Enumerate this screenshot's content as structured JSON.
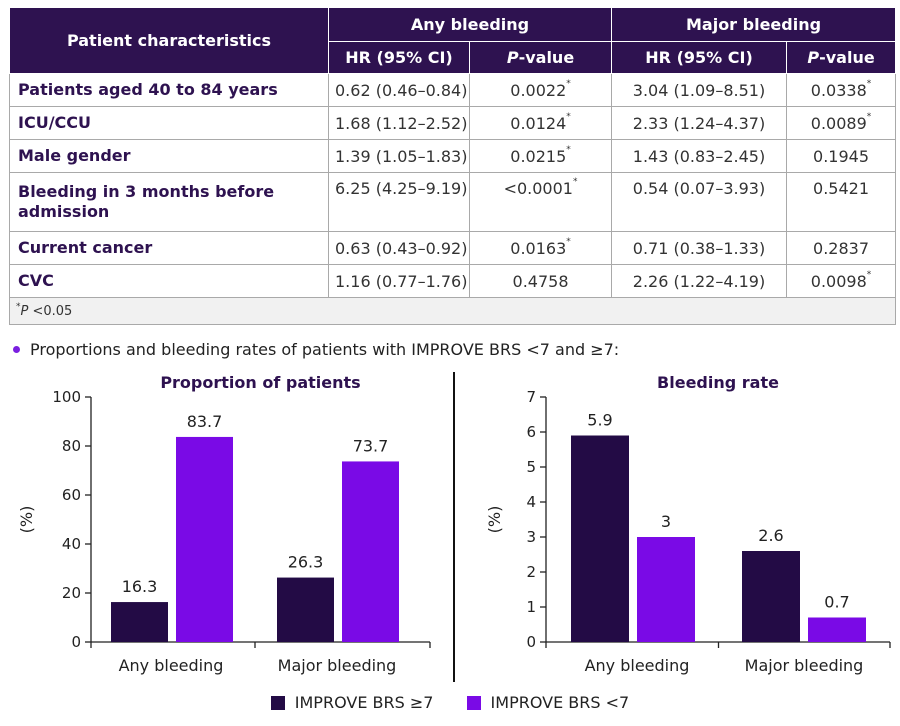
{
  "table": {
    "header": {
      "patient_characteristics": "Patient characteristics",
      "any_bleeding": "Any bleeding",
      "major_bleeding": "Major bleeding",
      "hr_ci": "HR (95% CI)",
      "p_italic": "P",
      "p_suffix": "-value"
    },
    "rows": [
      {
        "label": "Patients aged 40 to 84 years",
        "any_hr": "0.62 (0.46–0.84)",
        "any_p": "0.0022",
        "any_sig": "*",
        "major_hr": "3.04 (1.09–8.51)",
        "major_p": "0.0338",
        "major_sig": "*"
      },
      {
        "label": "ICU/CCU",
        "any_hr": "1.68 (1.12–2.52)",
        "any_p": "0.0124",
        "any_sig": "*",
        "major_hr": "2.33 (1.24–4.37)",
        "major_p": "0.0089",
        "major_sig": "*"
      },
      {
        "label": "Male gender",
        "any_hr": "1.39 (1.05–1.83)",
        "any_p": "0.0215",
        "any_sig": "*",
        "major_hr": "1.43 (0.83–2.45)",
        "major_p": "0.1945",
        "major_sig": ""
      },
      {
        "label": "Bleeding in 3 months before admission",
        "any_hr": "6.25 (4.25–9.19)",
        "any_p": "<0.0001",
        "any_sig": "*",
        "major_hr": "0.54 (0.07–3.93)",
        "major_p": "0.5421",
        "major_sig": ""
      },
      {
        "label": "Current cancer",
        "any_hr": "0.63 (0.43–0.92)",
        "any_p": "0.0163",
        "any_sig": "*",
        "major_hr": "0.71 (0.38–1.33)",
        "major_p": "0.2837",
        "major_sig": ""
      },
      {
        "label": "CVC",
        "any_hr": "1.16 (0.77–1.76)",
        "any_p": "0.4758",
        "any_sig": "",
        "major_hr": "2.26 (1.22–4.19)",
        "major_p": "0.0098",
        "major_sig": "*"
      }
    ],
    "footnote": {
      "star": "*",
      "p": "P",
      "rest": " <0.05"
    }
  },
  "bullet_text": "Proportions and bleeding rates of patients with IMPROVE BRS <7 and ≥7:",
  "chart_data": [
    {
      "type": "bar",
      "title": "Proportion of patients",
      "ylabel": "(%)",
      "ylim": [
        0,
        100
      ],
      "yticks": [
        0,
        20,
        40,
        60,
        80,
        100
      ],
      "categories": [
        "Any bleeding",
        "Major bleeding"
      ],
      "series": [
        {
          "name": "IMPROVE BRS ≥7",
          "values": [
            16.3,
            26.3
          ],
          "color": "#230b45"
        },
        {
          "name": "IMPROVE BRS <7",
          "values": [
            83.7,
            73.7
          ],
          "color": "#7a0ae6"
        }
      ],
      "grid": false
    },
    {
      "type": "bar",
      "title": "Bleeding rate",
      "ylabel": "(%)",
      "ylim": [
        0,
        7
      ],
      "yticks": [
        0,
        1,
        2,
        3,
        4,
        5,
        6,
        7
      ],
      "categories": [
        "Any bleeding",
        "Major bleeding"
      ],
      "series": [
        {
          "name": "IMPROVE BRS ≥7",
          "values": [
            5.9,
            2.6
          ],
          "color": "#230b45"
        },
        {
          "name": "IMPROVE BRS <7",
          "values": [
            3,
            0.7
          ],
          "color": "#7a0ae6"
        }
      ],
      "grid": false
    }
  ],
  "legend": [
    {
      "label": "IMPROVE BRS ≥7",
      "color": "#230b45"
    },
    {
      "label": "IMPROVE BRS <7",
      "color": "#7a0ae6"
    }
  ]
}
